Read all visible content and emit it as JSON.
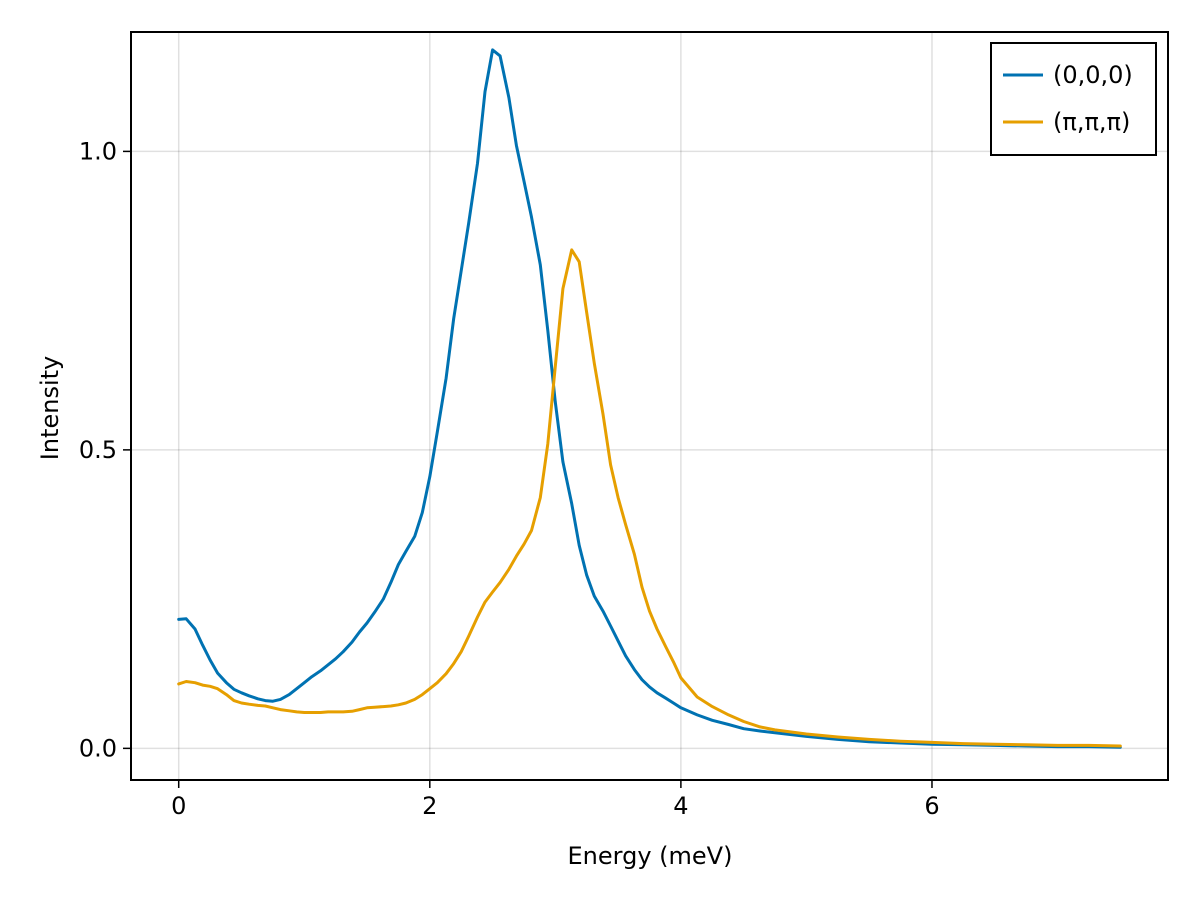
{
  "chart_data": {
    "type": "line",
    "title": "",
    "xlabel": "Energy (meV)",
    "ylabel": "Intensity",
    "xlim": [
      -0.38,
      7.88
    ],
    "ylim": [
      -0.053,
      1.2
    ],
    "xticks": [
      0,
      2,
      4,
      6
    ],
    "xtick_labels": [
      "0",
      "2",
      "4",
      "6"
    ],
    "yticks": [
      0.0,
      0.5,
      1.0
    ],
    "ytick_labels": [
      "0.0",
      "0.5",
      "1.0"
    ],
    "grid": true,
    "legend": {
      "position": "top-right",
      "entries": [
        "(0,0,0)",
        "(π,π,π)"
      ]
    },
    "series": [
      {
        "name": "(0,0,0)",
        "color": "#0072b2",
        "x": [
          0.0,
          0.06,
          0.13,
          0.19,
          0.25,
          0.31,
          0.38,
          0.44,
          0.5,
          0.56,
          0.63,
          0.69,
          0.75,
          0.81,
          0.88,
          0.94,
          1.0,
          1.06,
          1.13,
          1.19,
          1.25,
          1.31,
          1.38,
          1.44,
          1.5,
          1.56,
          1.63,
          1.69,
          1.75,
          1.81,
          1.88,
          1.94,
          2.0,
          2.06,
          2.13,
          2.19,
          2.25,
          2.31,
          2.38,
          2.44,
          2.5,
          2.56,
          2.63,
          2.69,
          2.75,
          2.81,
          2.88,
          2.94,
          3.0,
          3.06,
          3.13,
          3.19,
          3.25,
          3.31,
          3.38,
          3.44,
          3.5,
          3.56,
          3.63,
          3.69,
          3.75,
          3.81,
          3.88,
          3.94,
          4.0,
          4.13,
          4.25,
          4.38,
          4.5,
          4.63,
          4.75,
          5.0,
          5.25,
          5.5,
          5.75,
          6.0,
          6.25,
          6.5,
          6.75,
          7.0,
          7.25,
          7.5
        ],
        "y": [
          0.216,
          0.217,
          0.2,
          0.173,
          0.148,
          0.126,
          0.11,
          0.099,
          0.093,
          0.088,
          0.083,
          0.08,
          0.079,
          0.082,
          0.09,
          0.1,
          0.11,
          0.12,
          0.13,
          0.14,
          0.15,
          0.162,
          0.178,
          0.195,
          0.21,
          0.228,
          0.25,
          0.278,
          0.308,
          0.33,
          0.355,
          0.395,
          0.455,
          0.53,
          0.62,
          0.72,
          0.8,
          0.88,
          0.98,
          1.1,
          1.17,
          1.16,
          1.09,
          1.01,
          0.95,
          0.89,
          0.81,
          0.7,
          0.58,
          0.48,
          0.41,
          0.34,
          0.29,
          0.255,
          0.23,
          0.205,
          0.18,
          0.155,
          0.132,
          0.115,
          0.103,
          0.093,
          0.084,
          0.076,
          0.068,
          0.056,
          0.047,
          0.04,
          0.033,
          0.029,
          0.026,
          0.02,
          0.015,
          0.011,
          0.009,
          0.007,
          0.006,
          0.005,
          0.004,
          0.003,
          0.003,
          0.002
        ]
      },
      {
        "name": "(π,π,π)",
        "color": "#e69f00",
        "x": [
          0.0,
          0.06,
          0.13,
          0.19,
          0.25,
          0.31,
          0.38,
          0.44,
          0.5,
          0.56,
          0.63,
          0.69,
          0.75,
          0.81,
          0.88,
          0.94,
          1.0,
          1.06,
          1.13,
          1.19,
          1.25,
          1.31,
          1.38,
          1.44,
          1.5,
          1.56,
          1.63,
          1.69,
          1.75,
          1.81,
          1.88,
          1.94,
          2.0,
          2.06,
          2.13,
          2.19,
          2.25,
          2.31,
          2.38,
          2.44,
          2.5,
          2.56,
          2.63,
          2.69,
          2.75,
          2.81,
          2.88,
          2.94,
          3.0,
          3.06,
          3.13,
          3.19,
          3.25,
          3.31,
          3.38,
          3.44,
          3.5,
          3.56,
          3.63,
          3.69,
          3.75,
          3.81,
          3.88,
          3.94,
          4.0,
          4.13,
          4.25,
          4.38,
          4.5,
          4.63,
          4.75,
          5.0,
          5.25,
          5.5,
          5.75,
          6.0,
          6.25,
          6.5,
          6.75,
          7.0,
          7.25,
          7.5
        ],
        "y": [
          0.108,
          0.112,
          0.11,
          0.106,
          0.104,
          0.1,
          0.09,
          0.08,
          0.076,
          0.074,
          0.072,
          0.071,
          0.068,
          0.065,
          0.063,
          0.061,
          0.06,
          0.06,
          0.06,
          0.061,
          0.061,
          0.061,
          0.062,
          0.065,
          0.068,
          0.069,
          0.07,
          0.071,
          0.073,
          0.076,
          0.082,
          0.09,
          0.1,
          0.11,
          0.125,
          0.142,
          0.162,
          0.188,
          0.22,
          0.245,
          0.262,
          0.278,
          0.3,
          0.322,
          0.342,
          0.365,
          0.42,
          0.51,
          0.64,
          0.77,
          0.835,
          0.815,
          0.73,
          0.645,
          0.56,
          0.475,
          0.42,
          0.375,
          0.325,
          0.27,
          0.23,
          0.2,
          0.17,
          0.145,
          0.118,
          0.086,
          0.07,
          0.056,
          0.045,
          0.036,
          0.031,
          0.024,
          0.019,
          0.015,
          0.012,
          0.01,
          0.008,
          0.007,
          0.006,
          0.005,
          0.005,
          0.004
        ]
      }
    ]
  }
}
